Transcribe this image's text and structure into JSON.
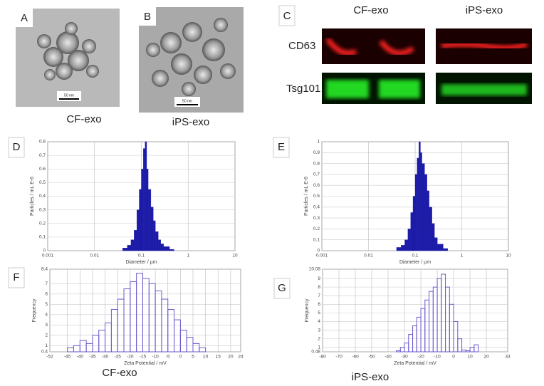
{
  "images": [
    {
      "label": "A",
      "caption": "CF-exo",
      "scale_bar": "50 nm"
    },
    {
      "label": "B",
      "caption": "iPS-exo",
      "scale_bar": "50 nm"
    }
  ],
  "blot": {
    "label": "C",
    "columns": [
      "CF-exo",
      "iPS-exo"
    ],
    "rows": [
      "CD63",
      "Tsg101"
    ]
  },
  "chart_data": [
    {
      "type": "histogram",
      "label": "D",
      "x_label": "Diameter / µm",
      "y_label": "Particles / mL E-6",
      "x_log": true,
      "grid": true,
      "color": "#1c1ca8",
      "bins": [
        0.04,
        0.05,
        0.06,
        0.07,
        0.08,
        0.09,
        0.1,
        0.11,
        0.12,
        0.13,
        0.14,
        0.16,
        0.18,
        0.2,
        0.23,
        0.26,
        0.3,
        0.4,
        0.5
      ],
      "values": [
        0.02,
        0.04,
        0.08,
        0.15,
        0.3,
        0.45,
        0.6,
        0.75,
        0.8,
        0.6,
        0.45,
        0.32,
        0.22,
        0.14,
        0.08,
        0.05,
        0.03,
        0.01
      ],
      "xlim": [
        0.001,
        10
      ],
      "xticks": [
        0.001,
        0.01,
        0.1,
        1,
        10
      ],
      "ylim": [
        0,
        0.8
      ],
      "yticks": [
        0,
        0.1,
        0.2,
        0.3,
        0.4,
        0.5,
        0.6,
        0.7,
        0.8
      ]
    },
    {
      "type": "histogram",
      "label": "E",
      "x_label": "Diameter / µm",
      "y_label": "Particles / mL E-6",
      "x_log": true,
      "grid": true,
      "color": "#1c1ca8",
      "bins": [
        0.04,
        0.05,
        0.06,
        0.07,
        0.08,
        0.09,
        0.1,
        0.11,
        0.12,
        0.13,
        0.14,
        0.16,
        0.18,
        0.2,
        0.23,
        0.26,
        0.3,
        0.4,
        0.5
      ],
      "values": [
        0.03,
        0.05,
        0.1,
        0.2,
        0.35,
        0.5,
        0.7,
        0.85,
        1,
        0.9,
        0.8,
        0.7,
        0.55,
        0.4,
        0.25,
        0.12,
        0.06,
        0.02
      ],
      "xlim": [
        0.001,
        10
      ],
      "xticks": [
        0.001,
        0.01,
        0.1,
        1,
        10
      ],
      "ylim": [
        0,
        1
      ],
      "yticks": [
        0,
        0.1,
        0.2,
        0.3,
        0.4,
        0.5,
        0.6,
        0.7,
        0.8,
        0.9,
        1
      ]
    },
    {
      "type": "histogram",
      "label": "F",
      "caption": "CF-exo",
      "x_label": "Zeta Potential / mV",
      "y_label": "Frequency",
      "x_log": false,
      "grid": true,
      "color": "#6a5acd",
      "bins": [
        -45,
        -42.5,
        -40,
        -37.5,
        -35,
        -32.5,
        -30,
        -27.5,
        -25,
        -22.5,
        -20,
        -17.5,
        -15,
        -12.5,
        -10,
        -7.5,
        -5,
        -2.5,
        0,
        2.5,
        5,
        7.5,
        10
      ],
      "values": [
        0.8,
        1,
        1.5,
        1.2,
        2,
        2.5,
        3.2,
        4.5,
        5.5,
        6.5,
        7.2,
        8,
        7.5,
        7,
        6.3,
        5.5,
        4.5,
        3.5,
        2.5,
        1.8,
        1.2,
        0.8
      ],
      "xlim": [
        -52,
        24
      ],
      "xticks": [
        -52,
        -45,
        -40,
        -35,
        -30,
        -25,
        -20,
        -15,
        -10,
        -5,
        0,
        5,
        10,
        15,
        20,
        24
      ],
      "ylim": [
        0.4,
        8.4
      ],
      "yticks": [
        0.4,
        1,
        2,
        3,
        4,
        5,
        6,
        7,
        8.4
      ]
    },
    {
      "type": "histogram",
      "label": "G",
      "caption": "iPS-exo",
      "x_label": "Zeta Potential / mV",
      "y_label": "Frequency",
      "x_log": false,
      "grid": true,
      "color": "#6a5acd",
      "bins": [
        -35,
        -32.5,
        -30,
        -27.5,
        -25,
        -22.5,
        -20,
        -17.5,
        -15,
        -12.5,
        -10,
        -7.5,
        -5,
        -2.5,
        0,
        2.5,
        5,
        7.5,
        10,
        12.5,
        15
      ],
      "values": [
        0.6,
        1,
        1.5,
        2.5,
        3.5,
        4.5,
        5.5,
        6.5,
        7.5,
        8,
        9,
        9.5,
        8,
        6,
        4,
        2,
        0.7,
        0.6,
        1,
        1.3
      ],
      "xlim": [
        -80,
        33
      ],
      "xticks": [
        -80,
        -70,
        -60,
        -50,
        -40,
        -30,
        -20,
        -10,
        0,
        10,
        20,
        33
      ],
      "ylim": [
        0.48,
        10.08
      ],
      "yticks": [
        0.48,
        1,
        2,
        3,
        4,
        5,
        6,
        7,
        8,
        9,
        10.08
      ]
    }
  ]
}
